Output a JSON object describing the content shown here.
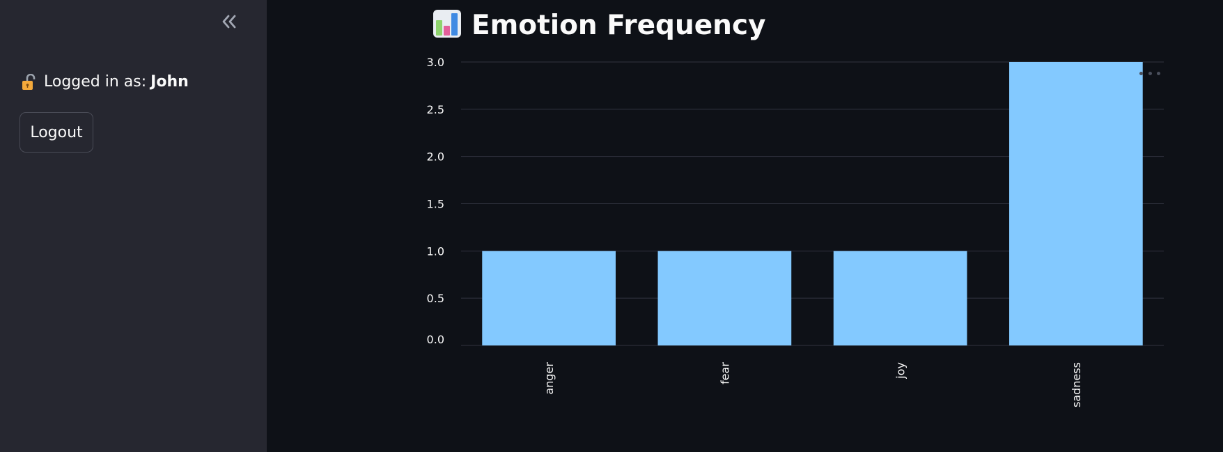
{
  "sidebar": {
    "login_prefix": "Logged in as:",
    "username": "John",
    "logout_label": "Logout",
    "collapse_icon": "double-chevron-left-icon",
    "lock_icon": "unlocked-padlock-icon"
  },
  "main": {
    "title": "Emotion Frequency",
    "title_icon": "bar-chart-icon"
  },
  "colors": {
    "page_bg": "#0e1117",
    "sidebar_bg": "#262730",
    "bar": "#83c9ff",
    "grid": "#31333f",
    "text": "#fafafa"
  },
  "chart_data": {
    "type": "bar",
    "categories": [
      "anger",
      "fear",
      "joy",
      "sadness"
    ],
    "values": [
      1,
      1,
      1,
      3
    ],
    "xlabel": "",
    "ylabel": "",
    "ylim": [
      0,
      3
    ],
    "yticks": [
      "0.0",
      "0.5",
      "1.0",
      "1.5",
      "2.0",
      "2.5",
      "3.0"
    ],
    "grid": true
  }
}
